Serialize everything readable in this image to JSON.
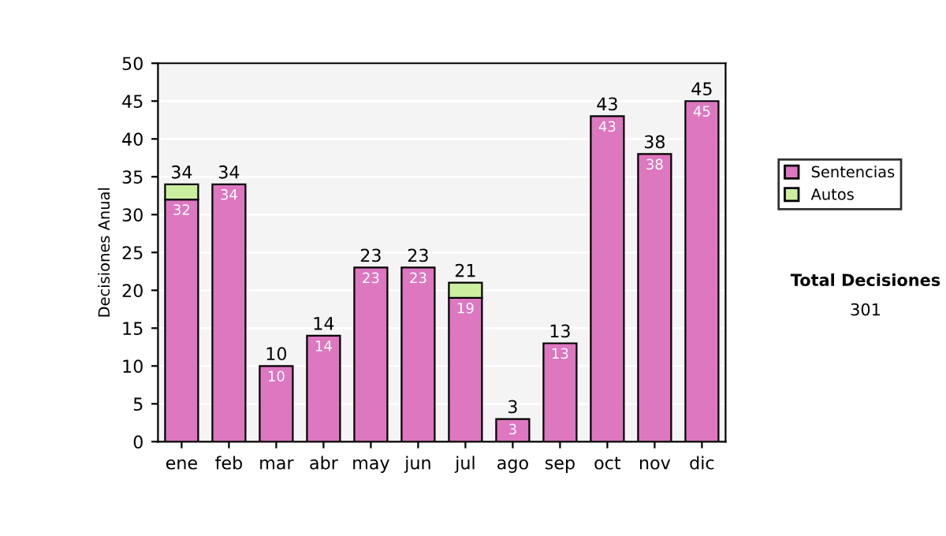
{
  "chart_data": {
    "type": "bar",
    "stacked": true,
    "ylabel": "Decisiones Anual",
    "categories": [
      "ene",
      "feb",
      "mar",
      "abr",
      "may",
      "jun",
      "jul",
      "ago",
      "sep",
      "oct",
      "nov",
      "dic"
    ],
    "series": [
      {
        "name": "Sentencias",
        "color": "#dd77c0",
        "values": [
          32,
          34,
          10,
          14,
          23,
          23,
          19,
          3,
          13,
          43,
          38,
          45
        ],
        "value_labels": [
          "32",
          "34",
          "10",
          "14",
          "23",
          "23",
          "19",
          "3",
          "13",
          "43",
          "38",
          "45"
        ]
      },
      {
        "name": "Autos",
        "color": "#cceea0",
        "values": [
          2,
          null,
          null,
          null,
          null,
          null,
          2,
          null,
          null,
          null,
          null,
          null
        ]
      }
    ],
    "totals": [
      "34",
      "34",
      "10",
      "14",
      "23",
      "23",
      "21",
      "3",
      "13",
      "43",
      "38",
      "45"
    ],
    "ylim": [
      0,
      50
    ],
    "yticks": [
      0,
      5,
      10,
      15,
      20,
      25,
      30,
      35,
      40,
      45,
      50
    ],
    "grid": "y",
    "legend": "right",
    "annotations": [
      "Total Decisiones",
      "301"
    ]
  }
}
